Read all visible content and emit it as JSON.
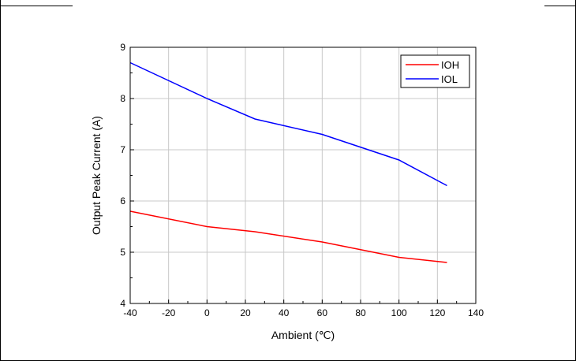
{
  "chart_data": {
    "type": "line",
    "xlabel": "Ambient (℃)",
    "ylabel": "Output Peak Current (A)",
    "xlim": [
      -40,
      140
    ],
    "ylim": [
      4,
      9
    ],
    "x_ticks": [
      -40,
      -20,
      0,
      20,
      40,
      60,
      80,
      100,
      120,
      140
    ],
    "y_ticks": [
      4,
      5,
      6,
      7,
      8,
      9
    ],
    "grid": true,
    "legend_position": "top-right",
    "series": [
      {
        "name": "IOH",
        "color": "#ff0000",
        "x": [
          -40,
          0,
          25,
          60,
          100,
          125
        ],
        "y": [
          5.8,
          5.5,
          5.4,
          5.2,
          4.9,
          4.8
        ]
      },
      {
        "name": "IOL",
        "color": "#0000ff",
        "x": [
          -40,
          0,
          25,
          60,
          100,
          125
        ],
        "y": [
          8.7,
          8.0,
          7.6,
          7.3,
          6.8,
          6.3
        ]
      }
    ]
  }
}
